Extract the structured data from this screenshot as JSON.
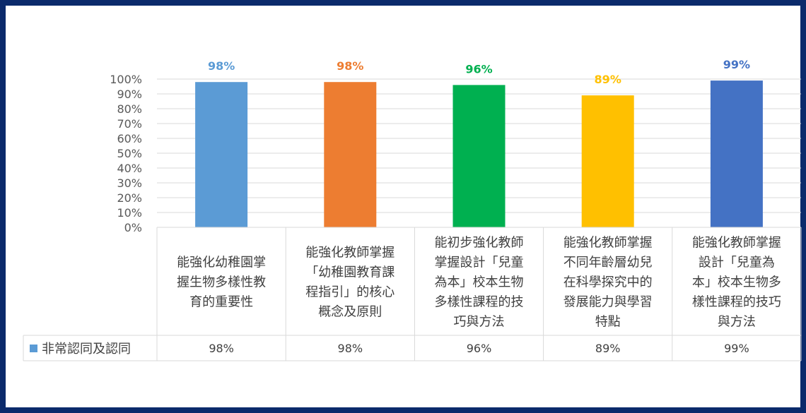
{
  "chart_data": {
    "type": "bar",
    "categories": [
      [
        "能強化幼稚園掌",
        "握生物多樣性教",
        "育的重要性"
      ],
      [
        "能強化教師掌握",
        "「幼稚園教育課",
        "程指引」的核心",
        "概念及原則"
      ],
      [
        "能初步強化教師",
        "掌握設計「兒童",
        "為本」校本生物",
        "多樣性課程的技",
        "巧與方法"
      ],
      [
        "能強化教師掌握",
        "不同年齡層幼兒",
        "在科學探究中的",
        "發展能力與學習",
        "特點"
      ],
      [
        "能強化教師掌握",
        "設計「兒童為",
        "本」校本生物多",
        "樣性課程的技巧",
        "與方法"
      ]
    ],
    "series": [
      {
        "name": "非常認同及認同",
        "values": [
          98,
          98,
          96,
          89,
          99
        ],
        "color": "#5b9bd5"
      }
    ],
    "data_labels": [
      "98%",
      "98%",
      "96%",
      "89%",
      "99%"
    ],
    "bar_colors": [
      "#5b9bd5",
      "#ed7d31",
      "#00b050",
      "#ffc000",
      "#4472c4"
    ],
    "y_ticks": [
      "0%",
      "10%",
      "20%",
      "30%",
      "40%",
      "50%",
      "60%",
      "70%",
      "80%",
      "90%",
      "100%"
    ],
    "ylim": [
      0,
      100
    ],
    "grid": true,
    "legend": "data-table-row",
    "table_row": {
      "legend_label": "非常認同及認同",
      "cells": [
        "98%",
        "98%",
        "96%",
        "89%",
        "99%"
      ]
    }
  }
}
